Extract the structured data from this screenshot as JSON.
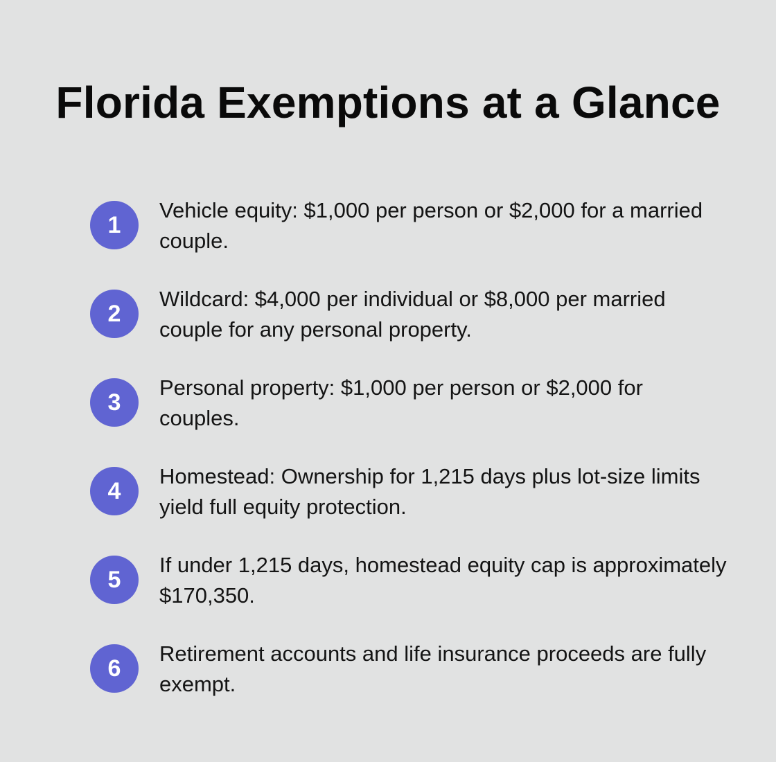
{
  "title": "Florida Exemptions at a Glance",
  "items": [
    {
      "number": "1",
      "text": "Vehicle equity: $1,000 per person or $2,000 for a married couple."
    },
    {
      "number": "2",
      "text": "Wildcard: $4,000 per individual or $8,000 per married couple for any personal property."
    },
    {
      "number": "3",
      "text": "Personal property: $1,000 per person or $2,000 for couples."
    },
    {
      "number": "4",
      "text": "Homestead: Ownership for 1,215 days plus lot-size limits yield full equity protection."
    },
    {
      "number": "5",
      "text": "If under 1,215 days, homestead equity cap is approximately $170,350."
    },
    {
      "number": "6",
      "text": "Retirement accounts and life insurance proceeds are fully exempt."
    }
  ],
  "colors": {
    "background": "#e1e2e2",
    "badge": "#6064d2",
    "badge_text": "#ffffff",
    "text": "#141414"
  }
}
